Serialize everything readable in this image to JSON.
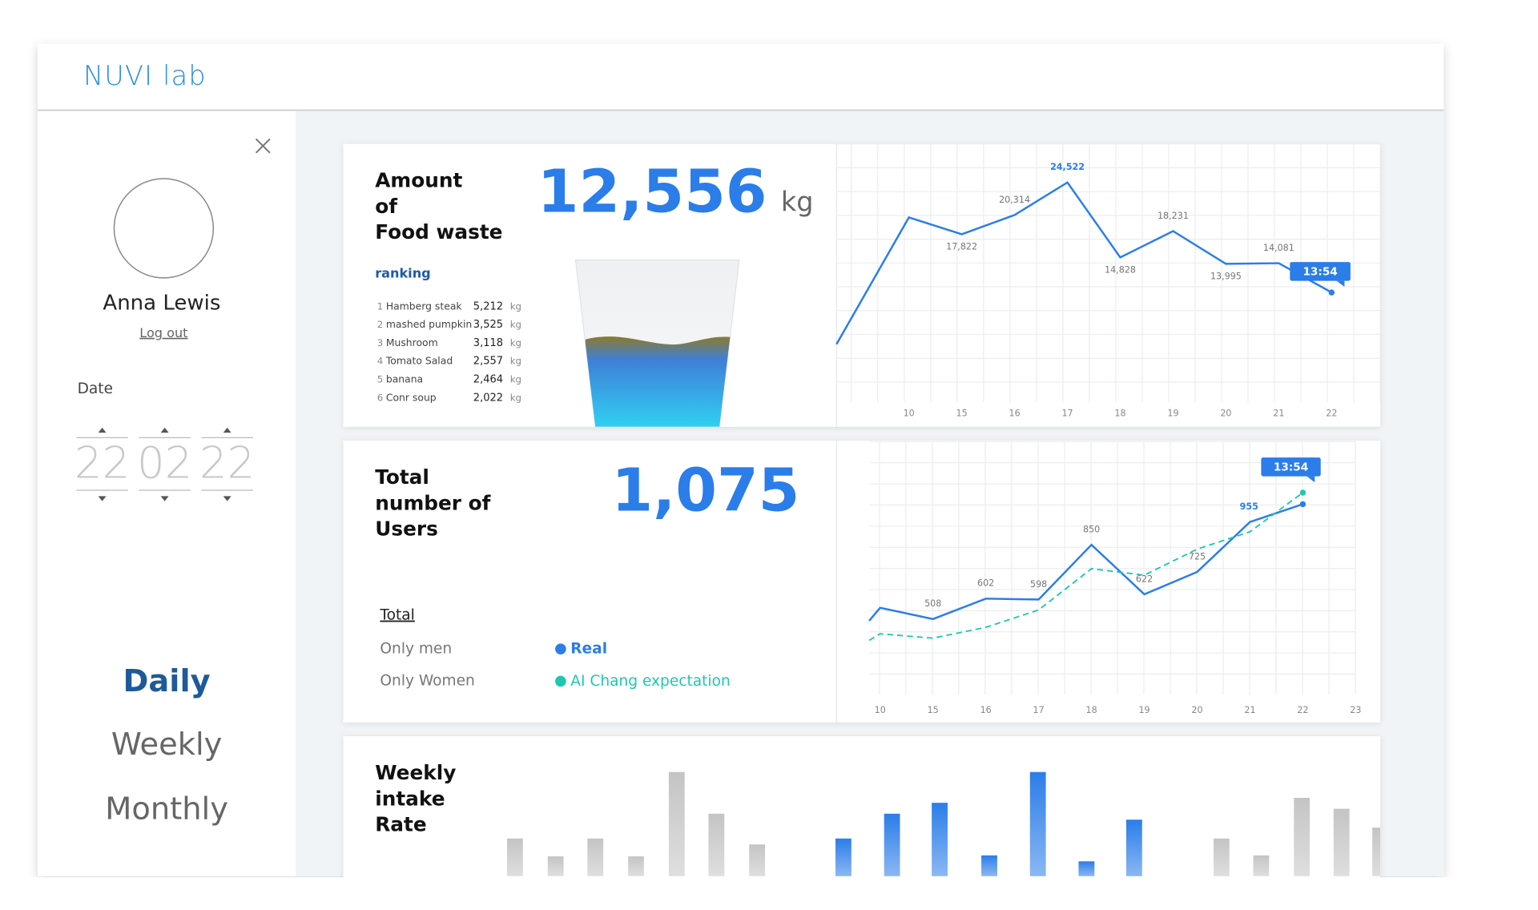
{
  "header": {
    "logo": "NUVI lab"
  },
  "sidebar": {
    "user_name": "Anna Lewis",
    "log_out": "Log out",
    "date_label": "Date",
    "date": [
      "22",
      "02",
      "22"
    ],
    "periods": [
      "Daily",
      "Weekly",
      "Monthly"
    ]
  },
  "food_waste": {
    "title": [
      "Amount",
      "of",
      "Food waste"
    ],
    "value": "12,556",
    "unit": "kg",
    "ranking_label": "ranking",
    "ranking": [
      {
        "rank": "1",
        "name": "Hamberg steak",
        "amount": "5,212",
        "unit": "kg"
      },
      {
        "rank": "2",
        "name": "mashed pumpkin",
        "amount": "3,525",
        "unit": "kg"
      },
      {
        "rank": "3",
        "name": "Mushroom",
        "amount": "3,118",
        "unit": "kg"
      },
      {
        "rank": "4",
        "name": "Tomato Salad",
        "amount": "2,557",
        "unit": "kg"
      },
      {
        "rank": "5",
        "name": "banana",
        "amount": "2,464",
        "unit": "kg"
      },
      {
        "rank": "6",
        "name": "Conr soup",
        "amount": "2,022",
        "unit": "kg"
      }
    ]
  },
  "users": {
    "title": [
      "Total",
      "number of",
      "Users"
    ],
    "value": "1,075",
    "legend_title": "Total",
    "filters": [
      "Only men",
      "Only Women"
    ]
  },
  "intake": {
    "title": [
      "Weekly",
      "intake",
      "Rate"
    ]
  },
  "chart_data": [
    {
      "type": "line",
      "categories": [
        null,
        10,
        15,
        16,
        17,
        18,
        19,
        20,
        21,
        22
      ],
      "values": [
        3600,
        20000,
        17822,
        20314,
        24522,
        14828,
        18231,
        13995,
        14081,
        10300
      ],
      "value_labels": [
        null,
        null,
        "17,822",
        "20,314",
        "24,522",
        "14,828",
        "18,231",
        "13,995",
        "14,081",
        null
      ],
      "color": "#2b7de9",
      "ylim": [
        -3850,
        29500
      ],
      "grid": true,
      "tooltip": "13:54"
    },
    {
      "type": "line",
      "categories": [
        null,
        10,
        15,
        16,
        17,
        18,
        19,
        20,
        21,
        22,
        23
      ],
      "series": [
        {
          "name": "Real",
          "color": "#2b7de9",
          "values": [
            500,
            560,
            508,
            602,
            598,
            850,
            622,
            725,
            955,
            1037,
            null
          ],
          "value_labels": [
            null,
            null,
            "508",
            "602",
            "598",
            "850",
            "622",
            "725",
            "955",
            null,
            null
          ]
        },
        {
          "name": "AI Chang expectation",
          "color": "#1ec8b0",
          "dashed": true,
          "values": [
            410,
            440,
            420,
            470,
            550,
            740,
            710,
            830,
            910,
            1090,
            null
          ]
        }
      ],
      "ylim": [
        160,
        1325
      ],
      "grid": true,
      "tooltip": "13:54"
    },
    {
      "type": "bar",
      "values": [
        38,
        20,
        38,
        20,
        105,
        63,
        32,
        38,
        63,
        74,
        21,
        105,
        15,
        57,
        38,
        21,
        79,
        68,
        49
      ],
      "colors": [
        "#c4c4c4",
        "#c4c4c4",
        "#c4c4c4",
        "#c4c4c4",
        "#c4c4c4",
        "#c4c4c4",
        "#c4c4c4",
        "#2b7de9",
        "#2b7de9",
        "#2b7de9",
        "#2b7de9",
        "#2b7de9",
        "#2b7de9",
        "#2b7de9",
        "#c4c4c4",
        "#c4c4c4",
        "#c4c4c4",
        "#c4c4c4",
        "#c4c4c4"
      ],
      "ylim": [
        0,
        110
      ]
    }
  ]
}
